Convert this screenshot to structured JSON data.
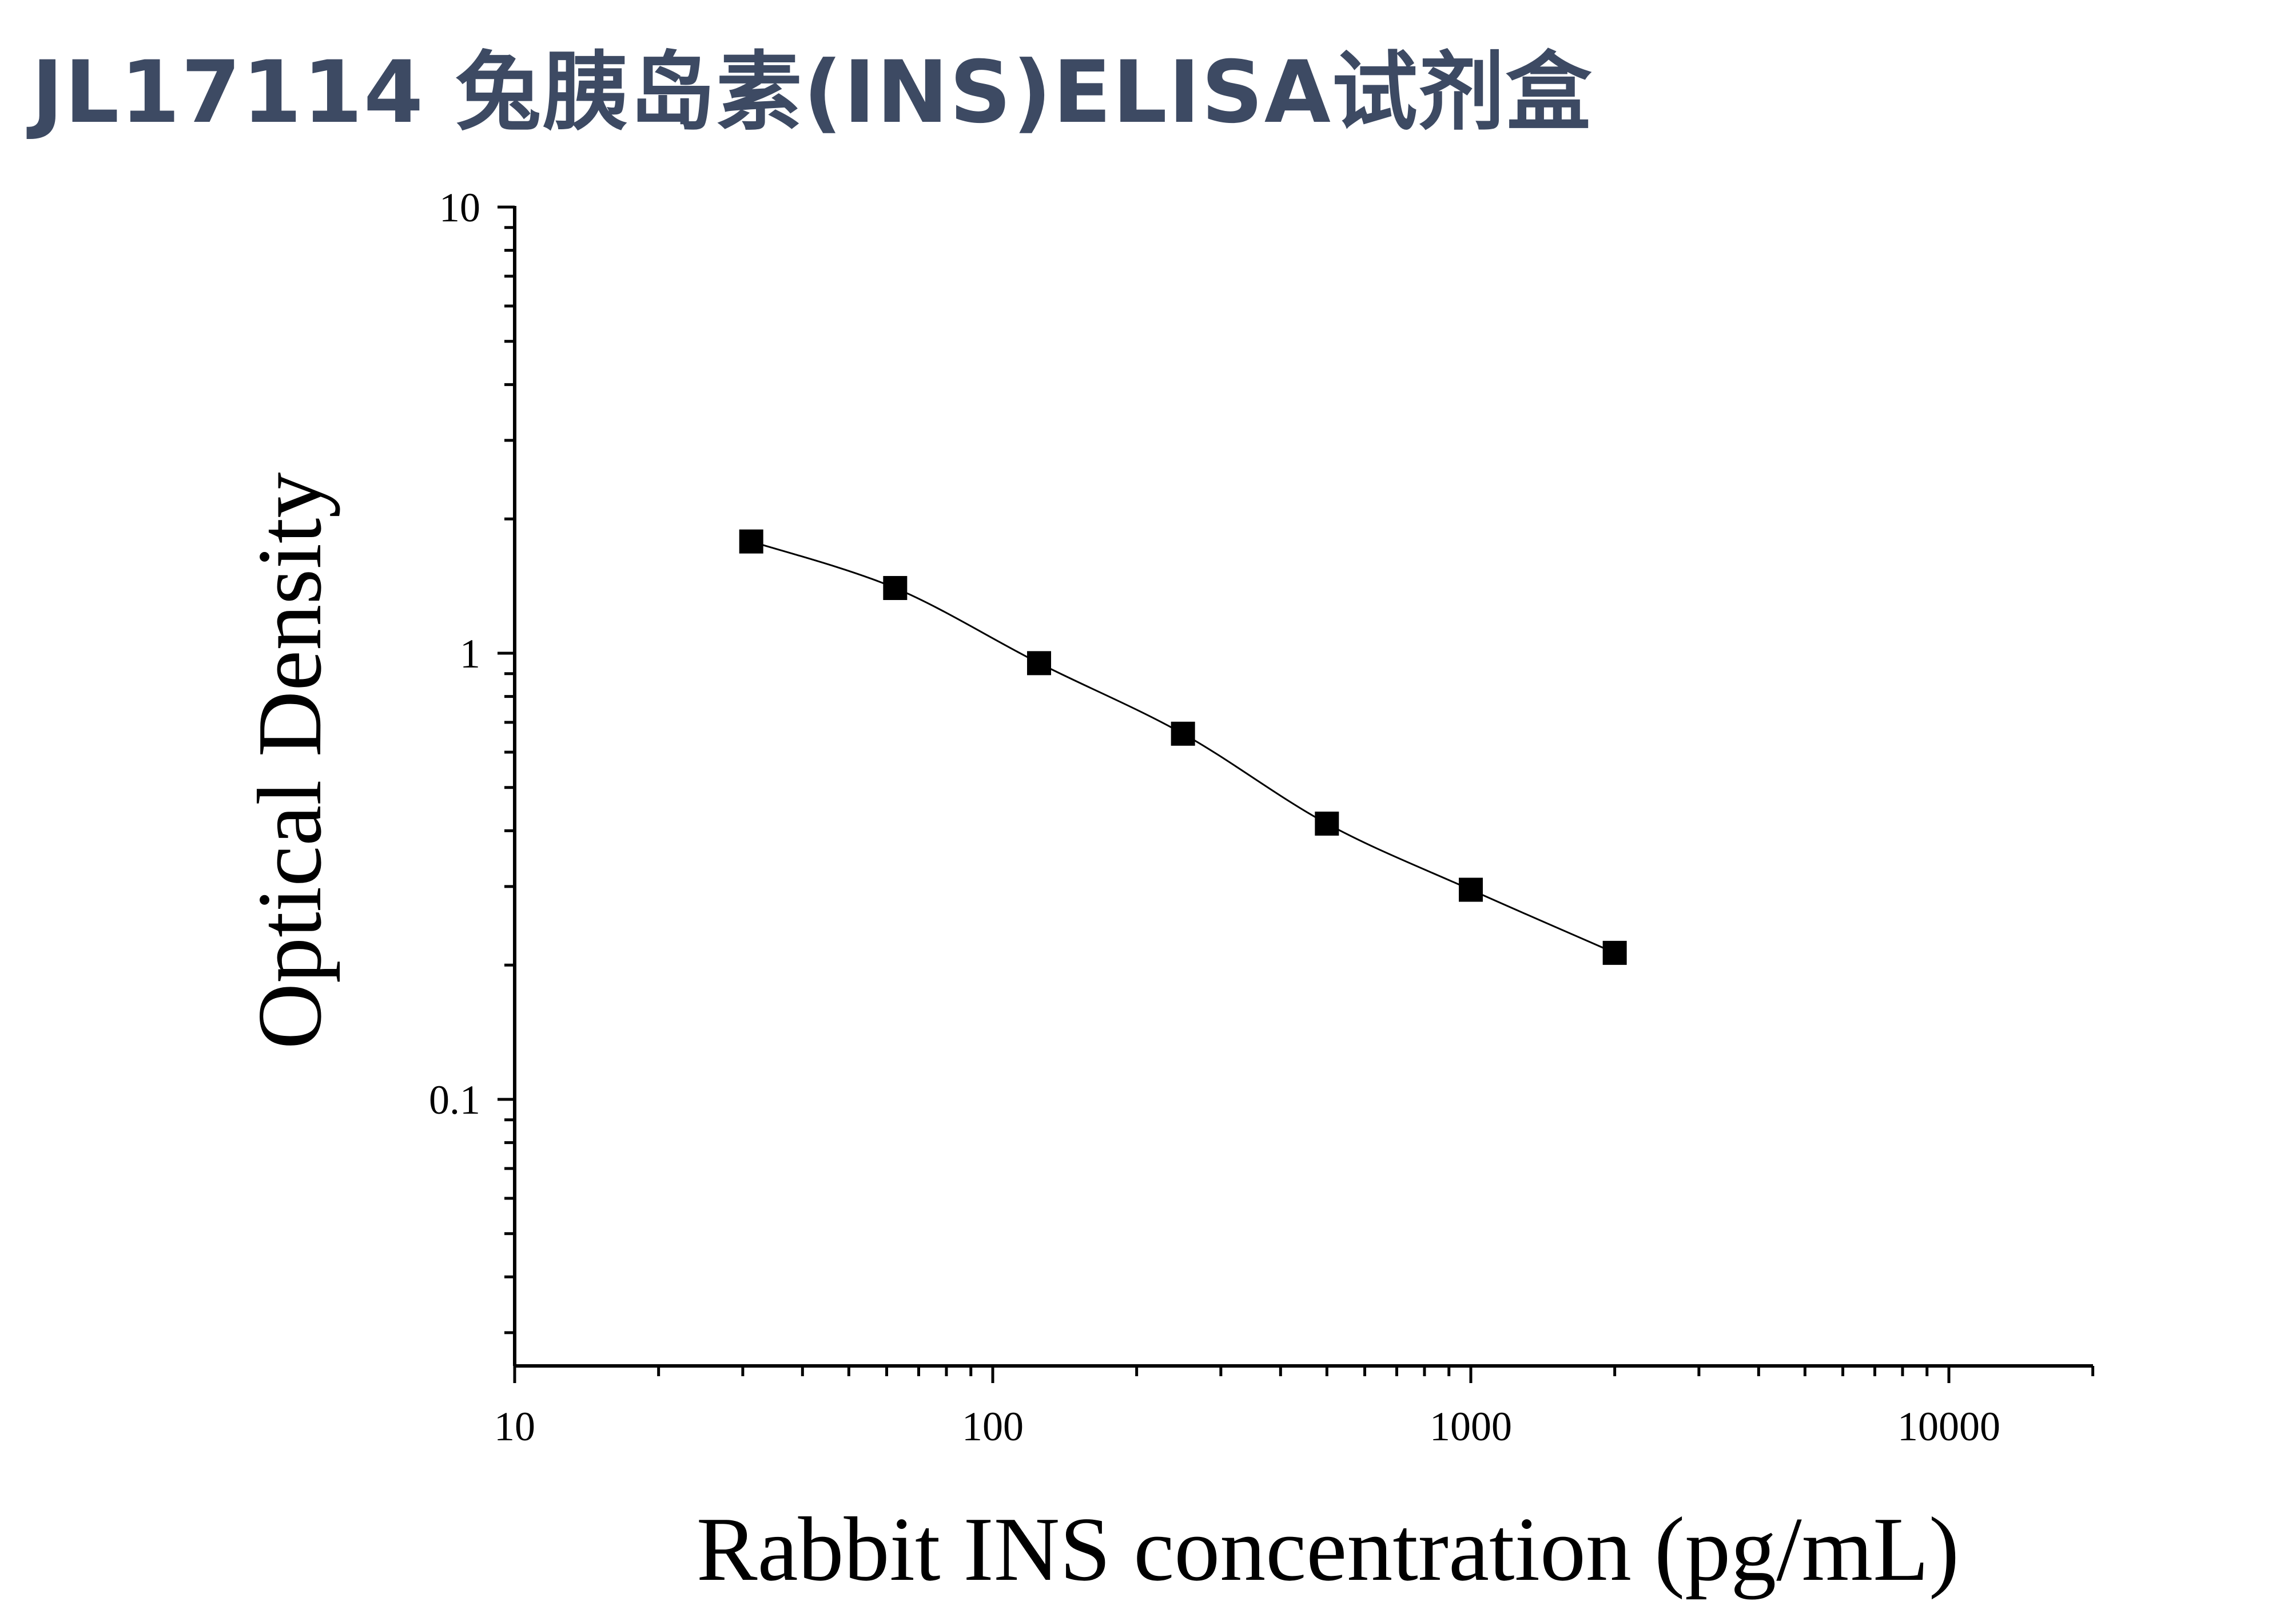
{
  "page": {
    "title": "JL17114 兔胰岛素(INS)ELISA试剂盒"
  },
  "chart_data": {
    "type": "scatter",
    "xlabel": "Rabbit INS concentration (pg/mL)",
    "ylabel": "Optical Density",
    "x_scale": "log",
    "y_scale": "log",
    "xlim": [
      10,
      20000
    ],
    "ylim": [
      0.025,
      10
    ],
    "x_ticks": [
      {
        "value": 10,
        "label": "10"
      },
      {
        "value": 100,
        "label": "100"
      },
      {
        "value": 1000,
        "label": "1000"
      },
      {
        "value": 10000,
        "label": "10000"
      }
    ],
    "y_ticks": [
      {
        "value": 0.1,
        "label": "0.1"
      },
      {
        "value": 1,
        "label": "1"
      },
      {
        "value": 10,
        "label": "10"
      }
    ],
    "grid": false,
    "series": [
      {
        "marker": "square",
        "color": "#000000",
        "fit_line": true,
        "x": [
          31.25,
          62.5,
          125,
          250,
          500,
          1000,
          2000
        ],
        "y": [
          1.78,
          1.4,
          0.95,
          0.66,
          0.415,
          0.295,
          0.213
        ]
      }
    ]
  }
}
